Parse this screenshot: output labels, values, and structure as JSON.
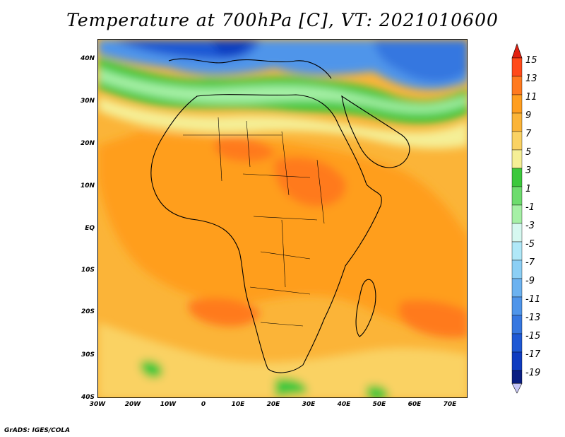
{
  "title": "Temperature at 700hPa [C], VT: 2021010600",
  "credit": "GrADS: IGES/COLA",
  "map": {
    "region": "Africa",
    "lat_labels": [
      "40N",
      "30N",
      "20N",
      "10N",
      "EQ",
      "10S",
      "20S",
      "30S",
      "40S"
    ],
    "lon_labels": [
      "30W",
      "20W",
      "10W",
      "0",
      "10E",
      "20E",
      "30E",
      "40E",
      "50E",
      "60E",
      "70E"
    ]
  },
  "colorbar": {
    "labels": [
      "15",
      "13",
      "11",
      "9",
      "7",
      "5",
      "3",
      "1",
      "-1",
      "-3",
      "-5",
      "-7",
      "-9",
      "-11",
      "-13",
      "-15",
      "-17",
      "-19"
    ],
    "colors": [
      "#e02010",
      "#ff4a1a",
      "#ff7a1f",
      "#ff9e1f",
      "#fbb438",
      "#fad264",
      "#f5ef96",
      "#3cc83c",
      "#6edc6e",
      "#a6f0a6",
      "#d6f8f0",
      "#b0e8f8",
      "#8ccff5",
      "#6cb2f0",
      "#4f95ea",
      "#3677e0",
      "#1e58d4",
      "#0f3cc0",
      "#0a1e82"
    ],
    "over_color": "#e02010",
    "under_color": "#c8c8f8"
  }
}
